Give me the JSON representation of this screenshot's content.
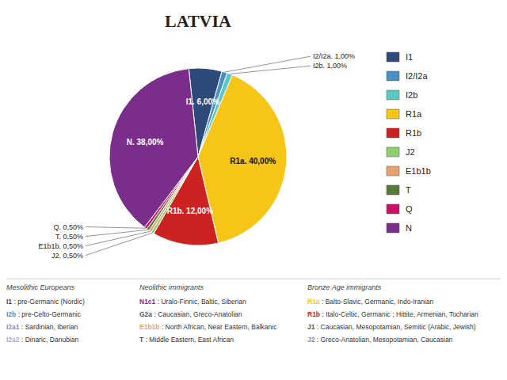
{
  "chart_data": {
    "type": "pie",
    "title": "LATVIA",
    "categories": [
      "I1",
      "I2/I2a",
      "I2b",
      "R1a",
      "R1b",
      "J2",
      "E1b1b",
      "T",
      "Q",
      "N"
    ],
    "values": [
      6.0,
      1.0,
      1.0,
      40.0,
      12.0,
      0.5,
      0.5,
      0.5,
      0.5,
      38.0
    ],
    "value_labels": [
      "I1. 6,00%",
      "I2/I2a. 1,00%",
      "I2b. 1,00%",
      "R1a. 40,00%",
      "R1b. 12,00%",
      "J2. 0,50%",
      "E1b1b. 0,50%",
      "T. 0,50%",
      "Q. 0,50%",
      "N. 38,00%"
    ],
    "colors": [
      "#2E4A7A",
      "#4A90C4",
      "#5BC8C8",
      "#F5C518",
      "#CC2222",
      "#90CC70",
      "#E8A070",
      "#5A7A3A",
      "#CC1166",
      "#7B2D8B"
    ],
    "data_labels": true,
    "legend": "right",
    "annotations": [
      {
        "header": "Mesolithic Europeans",
        "rows": [
          {
            "key": "I1",
            "color": "#2E4A7A",
            "text": " : pre-Germanic (Nordic)"
          },
          {
            "key": "I2b",
            "color": "#4A90C4",
            "text": " : pre-Celto-Germanic"
          },
          {
            "key": "I2a1",
            "color": "#8888CC",
            "text": " : Sardinian, Iberian"
          },
          {
            "key": "I2a2",
            "color": "#AAAADD",
            "text": " : Dinaric, Danubian"
          }
        ]
      },
      {
        "header": "Neolithic immigrants",
        "rows": [
          {
            "key": "N1c1",
            "color": "#7B2D8B",
            "text": " : Uralo-Finnic, Baltic, Siberian"
          },
          {
            "key": "G2a",
            "color": "#555555",
            "text": " : Caucasian, Greco-Anatolian"
          },
          {
            "key": "E1b1b",
            "color": "#E8A070",
            "text": " : North African, Near Eastern, Balkanic"
          },
          {
            "key": "T",
            "color": "#555555",
            "text": " : Middle Eastern, East African"
          }
        ]
      },
      {
        "header": "Bronze Age immigrants",
        "rows": [
          {
            "key": "R1a",
            "color": "#F5C518",
            "text": " : Balto-Slavic, Germanic, Indo-Iranian"
          },
          {
            "key": "R1b",
            "color": "#CC2222",
            "text": " : Italo-Celtic, Germanic ; Hittite, Armenian, Tocharian"
          },
          {
            "key": "J1",
            "color": "#555555",
            "text": " : Caucasian, Mesopotamian, Semitic (Arabic, Jewish)"
          },
          {
            "key": "J2",
            "color": "#888888",
            "text": " : Greco-Anatolian, Mesopotamian, Caucasian"
          }
        ]
      }
    ]
  }
}
